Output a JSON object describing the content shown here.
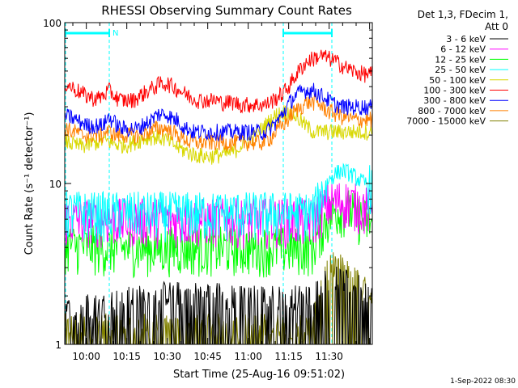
{
  "chart_data": {
    "type": "line",
    "title": "RHESSI Observing Summary Count Rates",
    "xlabel": "Start Time (25-Aug-16 09:51:02)",
    "ylabel": "Count Rate (s⁻¹ detector⁻¹)",
    "yscale": "log",
    "ylim": [
      1,
      100
    ],
    "y_ticks": [
      "1",
      "10",
      "100"
    ],
    "x_range_min": [
      -8,
      106
    ],
    "x_ticks": [
      {
        "label": "10:00",
        "min": 0
      },
      {
        "label": "10:15",
        "min": 15
      },
      {
        "label": "10:30",
        "min": 30
      },
      {
        "label": "10:45",
        "min": 45
      },
      {
        "label": "11:00",
        "min": 60
      },
      {
        "label": "11:15",
        "min": 75
      },
      {
        "label": "11:30",
        "min": 90
      }
    ],
    "legend_header": [
      "Det 1,3, FDecim 1,",
      "Att 0"
    ],
    "legend_position": "right",
    "timestamp": "1-Sep-2022 08:30",
    "annotations": [
      {
        "label": "N",
        "type": "night",
        "start_min": -8,
        "end_min": 8.5,
        "color": "#00ffff"
      },
      {
        "label": "",
        "type": "night",
        "start_min": 73,
        "end_min": 91,
        "color": "#00ffff"
      }
    ],
    "series": [
      {
        "name": "3 - 6 keV",
        "color": "#000000",
        "style": "spiky",
        "base": [
          1.5,
          1.5,
          1.5,
          1.5,
          1.5,
          1.5,
          1.5,
          1.6,
          1.6,
          1.6,
          1.6,
          1.6,
          1.6,
          1.6,
          1.7,
          1.7,
          1.7,
          1.7,
          1.7,
          1.7,
          1.7,
          1.8,
          1.8,
          1.8,
          1.8,
          1.8,
          1.8,
          1.8,
          1.9,
          1.9,
          1.9,
          1.9,
          1.9,
          1.9,
          1.9,
          1.9,
          1.9,
          1.9,
          1.9,
          1.9,
          1.9,
          1.9,
          1.9,
          1.9,
          1.9,
          1.9,
          1.9,
          1.9,
          1.9,
          1.9,
          1.9,
          1.8,
          1.8,
          1.8,
          1.8,
          1.8,
          1.8,
          1.8,
          1.8,
          1.8,
          1.8,
          1.8,
          1.8,
          1.8,
          1.8,
          1.8,
          1.8,
          1.8,
          1.8,
          1.8,
          1.8,
          1.8,
          1.8,
          1.8,
          1.8,
          1.8,
          1.8,
          1.8,
          1.8,
          1.8,
          1.8,
          2.0,
          2.1,
          2.3,
          2.3,
          2.4,
          2.4,
          2.4,
          2.3,
          2.3,
          2.3,
          2.2,
          2.2,
          2.2,
          2.1,
          2.1,
          2.0,
          2.0,
          1.9,
          1.9
        ]
      },
      {
        "name": "6 - 12 keV",
        "color": "#ff00ff",
        "style": "noisy",
        "base": [
          6.0,
          6.0,
          6.0,
          6.0,
          6.0,
          6.0,
          6.0,
          6.0,
          6.0,
          6.0,
          6.0,
          6.0,
          6.0,
          6.0,
          6.0,
          6.0,
          6.0,
          6.0,
          6.0,
          6.0,
          6.0,
          6.0,
          6.0,
          6.0,
          6.0,
          6.0,
          6.0,
          6.0,
          6.0,
          6.0,
          6.0,
          6.0,
          6.0,
          6.0,
          6.0,
          6.0,
          6.0,
          6.0,
          6.0,
          6.0,
          6.0,
          6.0,
          6.0,
          6.0,
          6.0,
          6.0,
          6.0,
          6.0,
          6.0,
          6.0,
          6.0,
          6.0,
          6.0,
          6.0,
          6.0,
          6.0,
          6.0,
          6.0,
          6.0,
          6.0,
          6.0,
          6.0,
          6.0,
          6.0,
          6.0,
          6.0,
          6.0,
          6.0,
          6.0,
          6.0,
          6.0,
          6.0,
          6.0,
          6.0,
          6.0,
          6.0,
          6.0,
          6.0,
          6.0,
          6.0,
          6.0,
          6.3,
          6.8,
          7.0,
          7.3,
          7.5,
          7.6,
          7.7,
          7.8,
          7.8,
          7.8,
          7.7,
          7.6,
          7.5,
          7.4,
          7.3,
          7.2,
          7.1,
          7.0,
          7.0
        ]
      },
      {
        "name": "12 - 25 keV",
        "color": "#00ff00",
        "style": "noisy",
        "base": [
          4.2,
          4.2,
          4.2,
          4.1,
          4.1,
          4.1,
          4.1,
          4.1,
          4.1,
          4.1,
          4.0,
          4.0,
          4.0,
          4.0,
          4.0,
          4.0,
          4.0,
          4.0,
          4.0,
          4.0,
          4.0,
          4.0,
          4.0,
          4.0,
          4.0,
          4.0,
          4.0,
          4.0,
          4.0,
          4.0,
          4.0,
          4.0,
          4.0,
          4.0,
          4.0,
          4.0,
          4.0,
          4.0,
          4.0,
          4.0,
          4.0,
          4.0,
          4.0,
          4.0,
          4.0,
          4.0,
          4.0,
          4.0,
          4.0,
          4.0,
          4.0,
          4.0,
          4.0,
          4.0,
          4.0,
          4.0,
          4.0,
          4.0,
          4.0,
          4.0,
          4.0,
          4.0,
          4.0,
          4.0,
          4.0,
          4.0,
          4.0,
          4.0,
          4.0,
          4.0,
          4.0,
          4.0,
          4.0,
          4.0,
          4.0,
          4.0,
          4.0,
          4.0,
          4.0,
          4.0,
          4.0,
          4.5,
          5.0,
          5.5,
          5.9,
          6.2,
          6.5,
          6.7,
          6.9,
          7.0,
          7.0,
          6.9,
          6.8,
          6.6,
          6.4,
          6.2,
          6.0,
          5.9,
          5.8,
          5.7
        ]
      },
      {
        "name": "25 - 50 keV",
        "color": "#00ffff",
        "style": "noisy",
        "base": [
          6.7,
          6.7,
          6.7,
          6.7,
          6.7,
          6.7,
          6.7,
          6.6,
          6.6,
          6.6,
          6.6,
          6.6,
          6.6,
          6.6,
          6.6,
          6.6,
          6.6,
          6.6,
          6.6,
          6.6,
          6.6,
          6.6,
          6.6,
          6.6,
          6.6,
          6.6,
          6.6,
          6.6,
          6.6,
          6.6,
          6.6,
          6.6,
          6.6,
          6.6,
          6.6,
          6.6,
          6.6,
          6.6,
          6.6,
          6.6,
          6.6,
          6.6,
          6.6,
          6.6,
          6.6,
          6.6,
          6.6,
          6.6,
          6.6,
          6.6,
          6.6,
          6.6,
          6.6,
          6.6,
          6.6,
          6.6,
          6.6,
          6.6,
          6.6,
          6.6,
          6.6,
          6.6,
          6.6,
          6.6,
          6.6,
          6.6,
          6.6,
          6.6,
          6.6,
          6.6,
          6.6,
          6.6,
          6.6,
          6.6,
          6.6,
          6.6,
          6.6,
          6.6,
          6.6,
          6.6,
          6.6,
          7.3,
          8.2,
          9.0,
          9.8,
          10.5,
          11.0,
          11.5,
          11.8,
          12.0,
          12.0,
          11.8,
          11.5,
          11.2,
          10.8,
          10.5,
          10.2,
          10.0,
          9.8,
          9.6
        ]
      },
      {
        "name": "50 - 100 keV",
        "color": "#d8d800",
        "style": "noisy",
        "base": [
          18.5,
          18.2,
          17.8,
          17.5,
          17.3,
          17.2,
          17.2,
          17.3,
          17.5,
          17.8,
          18.0,
          18.3,
          18.5,
          18.5,
          18.3,
          18.0,
          17.7,
          17.5,
          17.4,
          17.4,
          17.5,
          17.7,
          18.0,
          18.3,
          18.6,
          18.9,
          19.2,
          19.4,
          19.5,
          19.5,
          19.4,
          19.2,
          18.9,
          18.5,
          18.0,
          17.5,
          17.0,
          16.6,
          16.2,
          15.9,
          15.6,
          15.3,
          15.1,
          15.0,
          14.9,
          14.8,
          14.8,
          14.8,
          14.9,
          15.0,
          15.1,
          15.2,
          15.3,
          15.5,
          15.8,
          16.2,
          16.8,
          17.4,
          18.0,
          18.5,
          19.0,
          19.6,
          20.5,
          21.5,
          22.5,
          23.5,
          24.5,
          25.5,
          26.5,
          27.2,
          27.8,
          28.0,
          27.8,
          27.3,
          26.5,
          25.5,
          24.5,
          23.5,
          22.5,
          21.8,
          21.0,
          21.0,
          21.0,
          21.0,
          21.0,
          21.0,
          21.0,
          21.0,
          21.0,
          21.0,
          21.0,
          21.0,
          21.0,
          21.0,
          21.0,
          21.0,
          21.0,
          21.0,
          21.0,
          21.0
        ]
      },
      {
        "name": "100 - 300 keV",
        "color": "#ff0000",
        "style": "noisy",
        "base": [
          42,
          41,
          40,
          39,
          38,
          37,
          36,
          35,
          35,
          34,
          34,
          34,
          35,
          36,
          38,
          37,
          35,
          34,
          33,
          33,
          33,
          33,
          33,
          34,
          35,
          36,
          37,
          38,
          39,
          40,
          41,
          42,
          42,
          42,
          41,
          40,
          39,
          38,
          37,
          36,
          35,
          34,
          34,
          33,
          33,
          33,
          33,
          33,
          33,
          33,
          32,
          32,
          32,
          32,
          32,
          32,
          31,
          31,
          31,
          31,
          31,
          31,
          31,
          31,
          31,
          31,
          32,
          33,
          34,
          35,
          36,
          38,
          40,
          43,
          46,
          49,
          52,
          55,
          57,
          59,
          60,
          61,
          62,
          62,
          61,
          60,
          59,
          58,
          56,
          55,
          53,
          52,
          51,
          50,
          49,
          49,
          48,
          48,
          48,
          48
        ]
      },
      {
        "name": "300 - 800 keV",
        "color": "#0000ff",
        "style": "noisy",
        "base": [
          27,
          26,
          26,
          25,
          25,
          24,
          24,
          23,
          23,
          23,
          23,
          23,
          23,
          24,
          26,
          25,
          24,
          23,
          22,
          22,
          22,
          22,
          22,
          22,
          22,
          23,
          24,
          24,
          25,
          26,
          27,
          27,
          27,
          27,
          26,
          25,
          25,
          24,
          23,
          22,
          22,
          21,
          21,
          21,
          21,
          21,
          21,
          21,
          21,
          21,
          21,
          21,
          21,
          21,
          21,
          21,
          21,
          21,
          21,
          21,
          21,
          21,
          21,
          21,
          21,
          21,
          22,
          23,
          24,
          25,
          27,
          29,
          31,
          33,
          35,
          36,
          37,
          38,
          38,
          38,
          38,
          37,
          36,
          35,
          34,
          33,
          32,
          31,
          31,
          30,
          30,
          30,
          30,
          30,
          30,
          30,
          30,
          30,
          30,
          30
        ]
      },
      {
        "name": "800 - 7000 keV",
        "color": "#ff8000",
        "style": "noisy",
        "base": [
          22,
          22,
          21,
          21,
          21,
          20,
          20,
          20,
          20,
          20,
          20,
          20,
          20,
          21,
          21,
          21,
          20,
          20,
          20,
          20,
          20,
          20,
          20,
          20,
          20,
          20,
          21,
          21,
          21,
          22,
          22,
          22,
          22,
          22,
          21,
          21,
          20,
          20,
          19,
          19,
          18,
          18,
          18,
          18,
          18,
          18,
          18,
          18,
          18,
          18,
          18,
          18,
          18,
          18,
          18,
          18,
          18,
          18,
          18,
          18,
          18,
          18,
          18,
          18,
          18,
          19,
          19,
          20,
          21,
          22,
          23,
          24,
          25,
          27,
          28,
          29,
          30,
          31,
          32,
          32,
          32,
          32,
          31,
          30,
          29,
          28,
          28,
          27,
          27,
          26,
          26,
          26,
          25,
          25,
          25,
          25,
          25,
          25,
          25,
          25
        ]
      },
      {
        "name": "7000 - 15000 keV",
        "color": "#808000",
        "style": "spiky",
        "base": [
          1.2,
          1.2,
          1.2,
          1.2,
          1.2,
          1.2,
          1.2,
          1.2,
          1.2,
          1.2,
          1.2,
          1.2,
          1.2,
          1.2,
          1.2,
          1.2,
          1.2,
          1.2,
          1.2,
          1.2,
          1.2,
          1.2,
          1.2,
          1.2,
          1.2,
          1.2,
          1.2,
          1.2,
          1.2,
          1.2,
          1.2,
          1.2,
          1.2,
          1.2,
          1.2,
          1.2,
          1.2,
          1.2,
          1.2,
          1.2,
          1.2,
          1.2,
          1.2,
          1.2,
          1.2,
          1.2,
          1.2,
          1.2,
          1.2,
          1.2,
          1.2,
          1.2,
          1.2,
          1.2,
          1.2,
          1.2,
          1.2,
          1.2,
          1.2,
          1.2,
          1.2,
          1.2,
          1.2,
          1.2,
          1.2,
          1.2,
          1.2,
          1.2,
          1.2,
          1.2,
          1.2,
          1.2,
          1.2,
          1.2,
          1.2,
          1.2,
          1.2,
          1.2,
          1.2,
          1.2,
          1.2,
          1.6,
          2.0,
          2.4,
          2.6,
          2.8,
          2.9,
          2.9,
          2.9,
          2.8,
          2.7,
          2.6,
          2.5,
          2.4,
          2.3,
          2.2,
          2.1,
          2.0,
          1.9,
          1.8
        ]
      }
    ]
  }
}
